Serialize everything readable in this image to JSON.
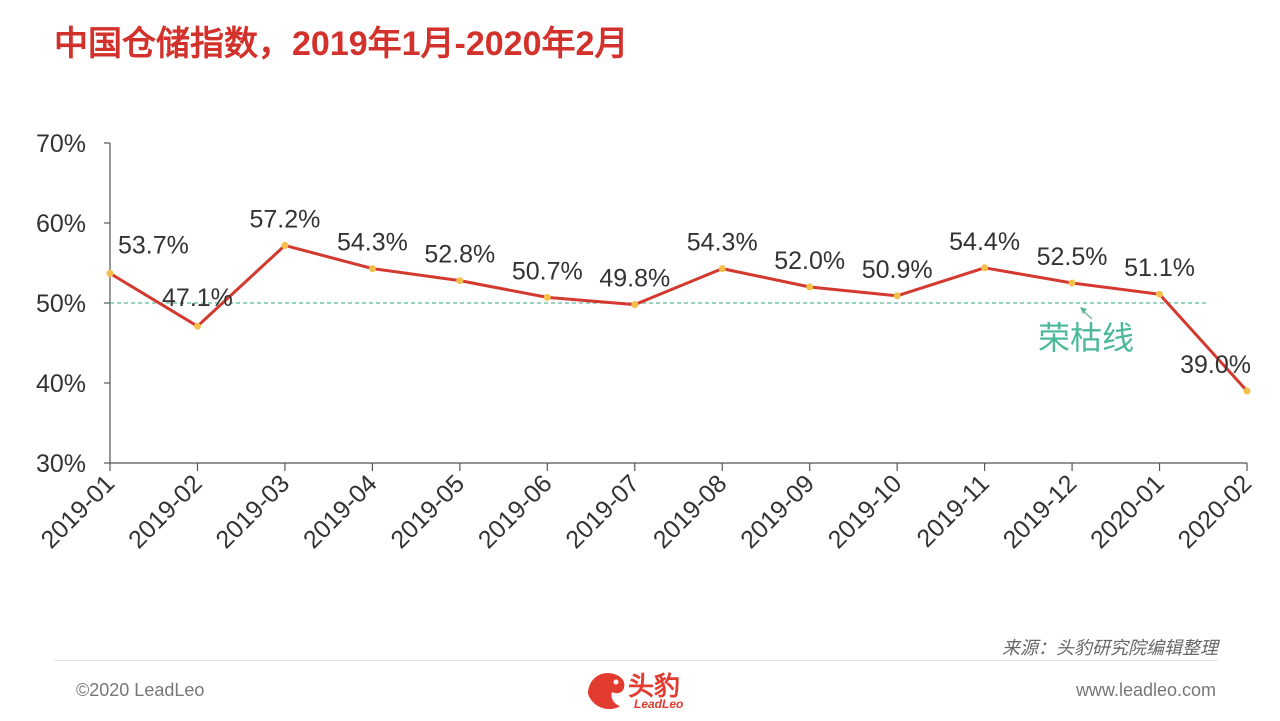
{
  "title": "中国仓储指数，2019年1月-2020年2月",
  "chart_data": {
    "type": "line",
    "x": [
      "2019-01",
      "2019-02",
      "2019-03",
      "2019-04",
      "2019-05",
      "2019-06",
      "2019-07",
      "2019-08",
      "2019-09",
      "2019-10",
      "2019-11",
      "2019-12",
      "2020-01",
      "2020-02"
    ],
    "series": [
      {
        "values": [
          53.7,
          47.1,
          57.2,
          54.3,
          52.8,
          50.7,
          49.8,
          54.3,
          52.0,
          50.9,
          54.4,
          52.5,
          51.1,
          39.0
        ]
      }
    ],
    "labels": [
      "53.7%",
      "47.1%",
      "57.2%",
      "54.3%",
      "52.8%",
      "50.7%",
      "49.8%",
      "54.3%",
      "52.0%",
      "50.9%",
      "54.4%",
      "52.5%",
      "51.1%",
      "39.0%"
    ],
    "ylim": [
      30,
      70
    ],
    "yticks": [
      "30%",
      "40%",
      "50%",
      "60%",
      "70%"
    ],
    "reference_line": {
      "value": 50,
      "label": "荣枯线"
    },
    "grid": false,
    "line_color": "#d3392f",
    "marker_color": "#f5c04a",
    "reference_color": "#5cb89c"
  },
  "footer": {
    "source": "来源：头豹研究院编辑整理",
    "copyright": "©2020 LeadLeo",
    "website": "www.leadleo.com",
    "logo_cn": "头豹",
    "logo_en": "LeadLeo"
  }
}
